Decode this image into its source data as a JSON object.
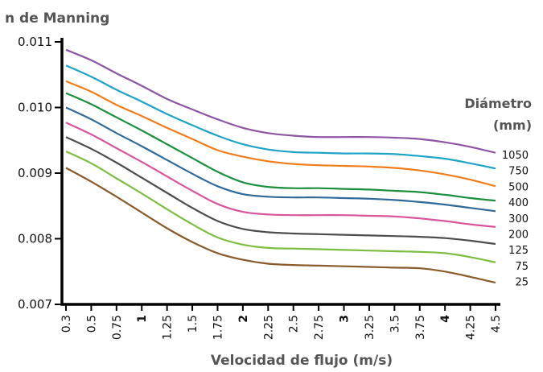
{
  "chart_data": {
    "type": "line",
    "ylabel": "n de Manning",
    "xlabel": "Velocidad de flujo (m/s)",
    "legend_title_line1": "Diámetro",
    "legend_title_line2": "(mm)",
    "ylim": [
      0.007,
      0.011
    ],
    "xlim": [
      0.3,
      4.5
    ],
    "yticks": [
      "0.007",
      "0.008",
      "0.009",
      "0.010",
      "0.011"
    ],
    "xticks": [
      "0.3",
      "0.5",
      "0.75",
      "1",
      "1.25",
      "1.5",
      "1.75",
      "2",
      "2.25",
      "2.5",
      "2.75",
      "3",
      "3.25",
      "3.5",
      "3.75",
      "4",
      "4.25",
      "4.5"
    ],
    "xticks_bold": [
      "1",
      "2",
      "3",
      "4"
    ],
    "x": [
      0.3,
      0.5,
      0.75,
      1,
      1.25,
      1.5,
      1.75,
      2,
      2.25,
      2.5,
      2.75,
      3,
      3.25,
      3.5,
      3.75,
      4,
      4.25,
      4.5
    ],
    "series": [
      {
        "name": "1050",
        "color": "#8e55a6",
        "values": [
          0.01088,
          0.01072,
          0.01052,
          0.01033,
          0.01013,
          0.00997,
          0.00982,
          0.00969,
          0.00961,
          0.00957,
          0.00955,
          0.00955,
          0.00955,
          0.00954,
          0.00952,
          0.00947,
          0.0094,
          0.00931
        ]
      },
      {
        "name": "750",
        "color": "#1fa3c7",
        "values": [
          0.01064,
          0.01047,
          0.01027,
          0.01009,
          0.0099,
          0.00973,
          0.00957,
          0.00944,
          0.00936,
          0.00932,
          0.00931,
          0.0093,
          0.0093,
          0.00929,
          0.00926,
          0.00922,
          0.00915,
          0.00907
        ]
      },
      {
        "name": "500",
        "color": "#f07c1c",
        "values": [
          0.0104,
          0.01024,
          0.01004,
          0.00987,
          0.00969,
          0.00952,
          0.00935,
          0.00925,
          0.00918,
          0.00914,
          0.00912,
          0.00911,
          0.0091,
          0.00908,
          0.00904,
          0.00898,
          0.0089,
          0.0088
        ]
      },
      {
        "name": "400",
        "color": "#1b8f3d",
        "values": [
          0.01022,
          0.01005,
          0.00985,
          0.00965,
          0.00944,
          0.00923,
          0.00902,
          0.00886,
          0.00879,
          0.00877,
          0.00877,
          0.00876,
          0.00875,
          0.00873,
          0.00871,
          0.00867,
          0.00862,
          0.00858
        ]
      },
      {
        "name": "300",
        "color": "#2f6a9b",
        "values": [
          0.01,
          0.00982,
          0.00961,
          0.00941,
          0.0092,
          0.00899,
          0.0088,
          0.00868,
          0.00864,
          0.00863,
          0.00863,
          0.00862,
          0.00861,
          0.00859,
          0.00856,
          0.00852,
          0.00847,
          0.00842
        ]
      },
      {
        "name": "200",
        "color": "#d9549b",
        "values": [
          0.00977,
          0.00959,
          0.00938,
          0.00917,
          0.00895,
          0.00873,
          0.00853,
          0.00841,
          0.00837,
          0.00836,
          0.00836,
          0.00836,
          0.00835,
          0.00834,
          0.00831,
          0.00827,
          0.00822,
          0.00818
        ]
      },
      {
        "name": "125",
        "color": "#4d4d4d",
        "values": [
          0.00955,
          0.00937,
          0.00916,
          0.00893,
          0.0087,
          0.00847,
          0.00827,
          0.00815,
          0.0081,
          0.00808,
          0.00807,
          0.00806,
          0.00805,
          0.00804,
          0.00803,
          0.00801,
          0.00797,
          0.00792
        ]
      },
      {
        "name": "75",
        "color": "#7dbd42",
        "values": [
          0.00933,
          0.00915,
          0.00892,
          0.00869,
          0.00845,
          0.00822,
          0.00802,
          0.00791,
          0.00786,
          0.00785,
          0.00784,
          0.00783,
          0.00782,
          0.00781,
          0.0078,
          0.00778,
          0.00772,
          0.00764
        ]
      },
      {
        "name": "25",
        "color": "#8b5a2b",
        "values": [
          0.00908,
          0.00887,
          0.00864,
          0.0084,
          0.00816,
          0.00795,
          0.00778,
          0.00768,
          0.00762,
          0.0076,
          0.00759,
          0.00758,
          0.00757,
          0.00756,
          0.00755,
          0.0075,
          0.00742,
          0.00733
        ]
      }
    ]
  }
}
